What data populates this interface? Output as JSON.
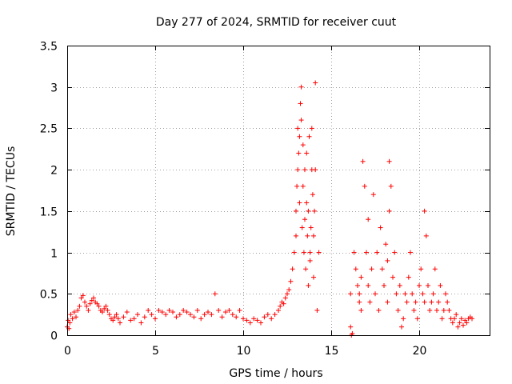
{
  "chart_data": {
    "type": "scatter",
    "title": "Day 277 of 2024, SRMTID for receiver cuut",
    "xlabel": "GPS time / hours",
    "ylabel": "SRMTID / TECUs",
    "xlim": [
      0,
      24
    ],
    "ylim": [
      0,
      3.5
    ],
    "xticks": [
      0,
      5,
      10,
      15,
      20
    ],
    "xtick_labels": [
      "0",
      "5",
      "10",
      "15",
      "20"
    ],
    "yticks": [
      0,
      0.5,
      1,
      1.5,
      2,
      2.5,
      3,
      3.5
    ],
    "ytick_labels": [
      "0",
      "0.5",
      "1",
      "1.5",
      "2",
      "2.5",
      "3",
      "3.5"
    ],
    "grid": true,
    "marker": "+",
    "series": [
      {
        "name": "SRMTID",
        "color": "#ff0000",
        "x": [
          0.0,
          0.05,
          0.1,
          0.15,
          0.2,
          0.3,
          0.4,
          0.5,
          0.6,
          0.7,
          0.8,
          0.9,
          1.0,
          1.1,
          1.2,
          1.3,
          1.4,
          1.5,
          1.6,
          1.7,
          1.8,
          1.9,
          2.0,
          2.1,
          2.2,
          2.3,
          2.4,
          2.5,
          2.6,
          2.7,
          2.8,
          2.9,
          3.0,
          3.2,
          3.4,
          3.6,
          3.8,
          4.0,
          4.2,
          4.4,
          4.6,
          4.8,
          5.0,
          5.2,
          5.4,
          5.6,
          5.8,
          6.0,
          6.2,
          6.4,
          6.6,
          6.8,
          7.0,
          7.2,
          7.4,
          7.6,
          7.8,
          8.0,
          8.2,
          8.4,
          8.6,
          8.8,
          9.0,
          9.2,
          9.4,
          9.6,
          9.8,
          10.0,
          10.2,
          10.4,
          10.6,
          10.8,
          11.0,
          11.2,
          11.4,
          11.6,
          11.8,
          12.0,
          12.1,
          12.2,
          12.3,
          12.4,
          12.5,
          12.6,
          12.7,
          12.8,
          12.9,
          13.0,
          13.0,
          13.05,
          13.1,
          13.1,
          13.15,
          13.2,
          13.2,
          13.25,
          13.3,
          13.3,
          13.35,
          13.4,
          13.4,
          13.45,
          13.5,
          13.5,
          13.55,
          13.6,
          13.6,
          13.65,
          13.7,
          13.7,
          13.75,
          13.8,
          13.8,
          13.85,
          13.9,
          13.9,
          13.95,
          14.0,
          14.0,
          14.05,
          14.1,
          14.1,
          14.2,
          14.3,
          16.1,
          16.1,
          16.15,
          16.2,
          16.3,
          16.4,
          16.5,
          16.6,
          16.6,
          16.7,
          16.7,
          16.8,
          16.9,
          17.0,
          17.1,
          17.1,
          17.2,
          17.3,
          17.4,
          17.5,
          17.6,
          17.7,
          17.8,
          17.9,
          18.0,
          18.1,
          18.2,
          18.2,
          18.3,
          18.3,
          18.4,
          18.5,
          18.6,
          18.7,
          18.8,
          18.9,
          19.0,
          19.1,
          19.2,
          19.3,
          19.4,
          19.5,
          19.6,
          19.7,
          19.8,
          19.9,
          20.0,
          20.1,
          20.2,
          20.3,
          20.3,
          20.4,
          20.5,
          20.6,
          20.7,
          20.8,
          20.9,
          21.0,
          21.1,
          21.2,
          21.3,
          21.4,
          21.5,
          21.6,
          21.7,
          21.8,
          21.9,
          22.0,
          22.1,
          22.2,
          22.3,
          22.4,
          22.5,
          22.6,
          22.7,
          22.8,
          22.9,
          23.0
        ],
        "y": [
          0.1,
          0.18,
          0.08,
          0.15,
          0.25,
          0.2,
          0.28,
          0.22,
          0.3,
          0.35,
          0.45,
          0.48,
          0.4,
          0.35,
          0.3,
          0.38,
          0.42,
          0.45,
          0.4,
          0.38,
          0.35,
          0.3,
          0.28,
          0.32,
          0.35,
          0.3,
          0.25,
          0.2,
          0.18,
          0.22,
          0.25,
          0.2,
          0.15,
          0.22,
          0.28,
          0.18,
          0.2,
          0.25,
          0.15,
          0.22,
          0.3,
          0.25,
          0.2,
          0.3,
          0.28,
          0.25,
          0.3,
          0.28,
          0.22,
          0.25,
          0.3,
          0.28,
          0.25,
          0.22,
          0.3,
          0.2,
          0.25,
          0.28,
          0.25,
          0.5,
          0.3,
          0.22,
          0.28,
          0.3,
          0.25,
          0.22,
          0.3,
          0.2,
          0.18,
          0.15,
          0.2,
          0.18,
          0.15,
          0.22,
          0.25,
          0.2,
          0.25,
          0.3,
          0.35,
          0.4,
          0.38,
          0.45,
          0.5,
          0.55,
          0.65,
          0.8,
          1.0,
          1.2,
          1.5,
          1.8,
          2.0,
          2.5,
          2.2,
          2.4,
          1.6,
          2.8,
          3.0,
          2.6,
          1.3,
          1.8,
          2.3,
          1.0,
          1.4,
          2.0,
          0.8,
          1.6,
          2.2,
          1.2,
          0.6,
          1.5,
          2.4,
          1.0,
          0.9,
          1.3,
          2.0,
          2.5,
          1.7,
          0.7,
          1.2,
          1.5,
          3.05,
          2.0,
          0.3,
          1.0,
          0.5,
          0.1,
          0.0,
          0.02,
          1.0,
          0.8,
          0.6,
          0.5,
          0.4,
          0.7,
          0.3,
          2.1,
          1.8,
          1.0,
          0.6,
          1.4,
          0.4,
          0.8,
          1.7,
          0.5,
          1.0,
          0.3,
          1.3,
          0.8,
          0.6,
          1.1,
          0.4,
          0.9,
          1.5,
          2.1,
          1.8,
          0.7,
          1.0,
          0.5,
          0.3,
          0.6,
          0.1,
          0.2,
          0.5,
          0.4,
          0.7,
          1.0,
          0.5,
          0.3,
          0.4,
          0.2,
          0.6,
          0.8,
          0.5,
          0.4,
          1.5,
          1.2,
          0.6,
          0.3,
          0.4,
          0.5,
          0.8,
          0.3,
          0.4,
          0.6,
          0.2,
          0.3,
          0.5,
          0.4,
          0.3,
          0.2,
          0.15,
          0.2,
          0.25,
          0.1,
          0.15,
          0.2,
          0.12,
          0.18,
          0.15,
          0.2,
          0.22,
          0.2
        ]
      }
    ]
  }
}
